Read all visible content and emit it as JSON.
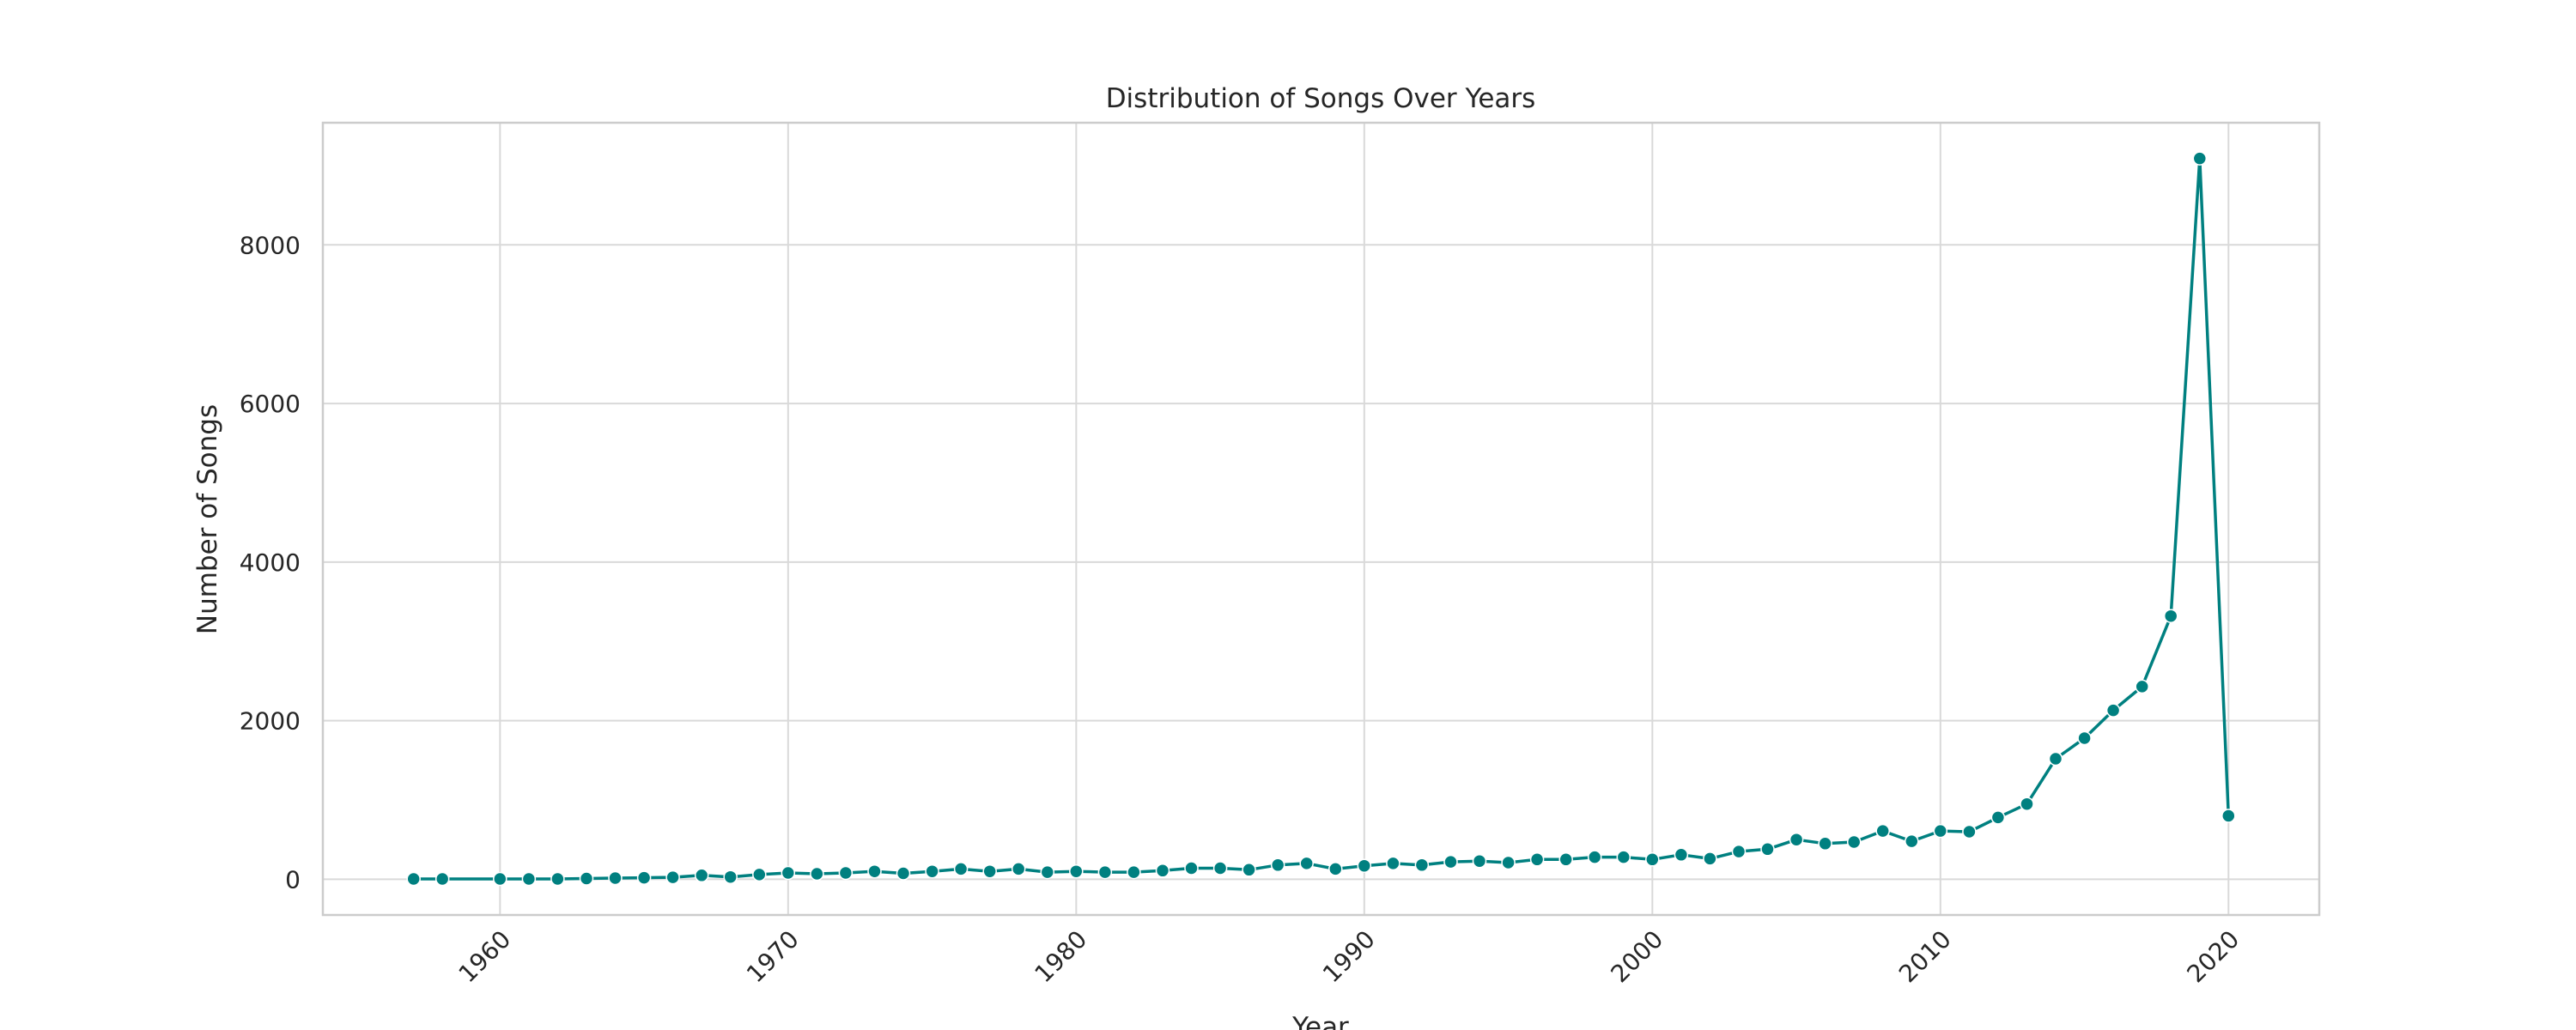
{
  "chart_data": {
    "type": "line",
    "title": "Distribution of Songs Over Years",
    "xlabel": "Year",
    "ylabel": "Number of Songs",
    "xlim": [
      1953.85,
      2023.15
    ],
    "ylim": [
      -450,
      9540
    ],
    "xticks": [
      1960,
      1970,
      1980,
      1990,
      2000,
      2010,
      2020
    ],
    "yticks": [
      0,
      2000,
      4000,
      6000,
      8000
    ],
    "grid": true,
    "legend": "none",
    "color": "#008080",
    "marker": "circle",
    "x": [
      1957,
      1958,
      1960,
      1961,
      1962,
      1963,
      1964,
      1965,
      1966,
      1967,
      1968,
      1969,
      1970,
      1971,
      1972,
      1973,
      1974,
      1975,
      1976,
      1977,
      1978,
      1979,
      1980,
      1981,
      1982,
      1983,
      1984,
      1985,
      1986,
      1987,
      1988,
      1989,
      1990,
      1991,
      1992,
      1993,
      1994,
      1995,
      1996,
      1997,
      1998,
      1999,
      2000,
      2001,
      2002,
      2003,
      2004,
      2005,
      2006,
      2007,
      2008,
      2009,
      2010,
      2011,
      2012,
      2013,
      2014,
      2015,
      2016,
      2017,
      2018,
      2019,
      2020
    ],
    "y": [
      5,
      5,
      5,
      5,
      5,
      10,
      15,
      20,
      25,
      50,
      30,
      60,
      80,
      70,
      80,
      100,
      75,
      100,
      130,
      100,
      130,
      90,
      100,
      90,
      90,
      110,
      140,
      140,
      120,
      180,
      200,
      130,
      170,
      200,
      180,
      220,
      230,
      210,
      250,
      250,
      280,
      280,
      250,
      310,
      260,
      350,
      380,
      500,
      450,
      470,
      610,
      480,
      610,
      600,
      780,
      950,
      1520,
      1780,
      2130,
      2430,
      3320,
      9090,
      800
    ]
  }
}
